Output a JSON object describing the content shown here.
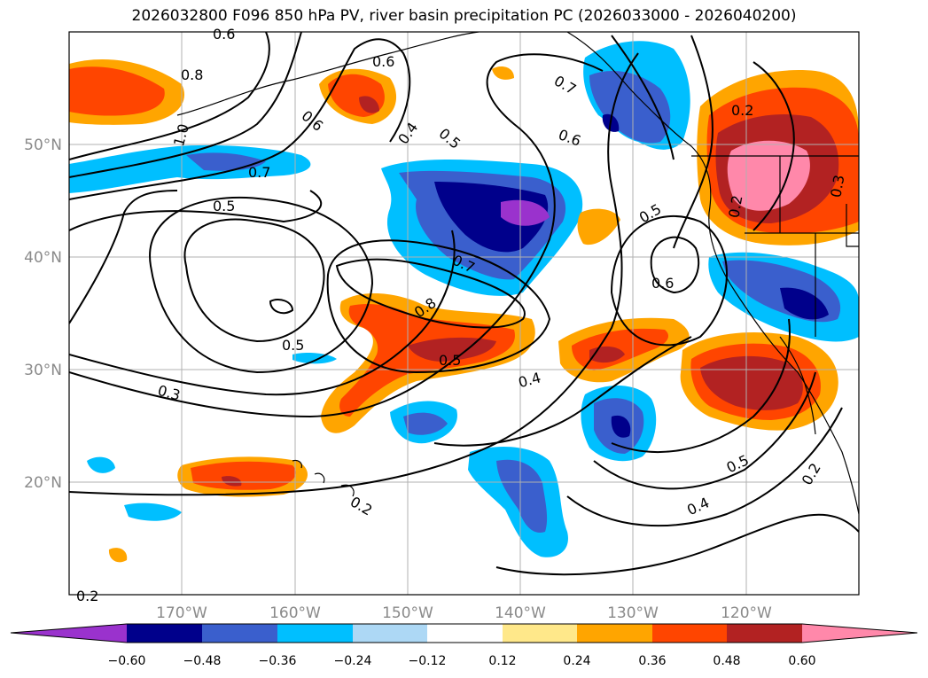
{
  "title": "2026032800 F096 850 hPa PV, river basin precipitation PC (2026033000 - 2026040200)",
  "map": {
    "lat_labels": [
      "50°N",
      "40°N",
      "30°N",
      "20°N"
    ],
    "lon_labels": [
      "170°W",
      "160°W",
      "150°W",
      "140°W",
      "130°W",
      "120°W"
    ],
    "pv_contour_labels": [
      "0.6",
      "0.8",
      "1.0",
      "0.6",
      "0.6",
      "0.4",
      "0.5",
      "0.7",
      "0.6",
      "0.2",
      "0.7",
      "0.5",
      "0.5",
      "0.6",
      "0.7",
      "0.8",
      "0.5",
      "0.5",
      "0.4",
      "0.3",
      "0.2",
      "0.5",
      "0.4",
      "0.2",
      "0.2",
      "0.3",
      "0.2"
    ]
  },
  "colorbar": {
    "ticks": [
      "−0.60",
      "−0.48",
      "−0.36",
      "−0.24",
      "−0.12",
      "0.12",
      "0.24",
      "0.36",
      "0.48",
      "0.60"
    ],
    "colors": {
      "under": "#9a32cd",
      "n048": "#00008b",
      "n036": "#3a5fcd",
      "n024": "#00bfff",
      "n012": "#add8f5",
      "zero": "#ffffff",
      "p012": "#ffe88a",
      "p024": "#ffa500",
      "p036": "#ff4500",
      "p048": "#b22222",
      "over": "#ff88aa"
    }
  }
}
